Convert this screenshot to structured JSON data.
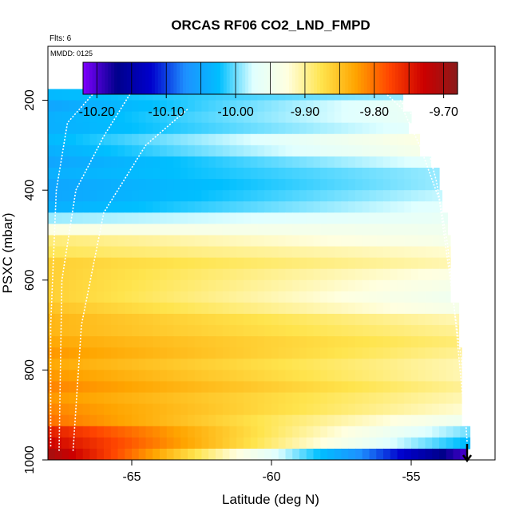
{
  "chart_data": {
    "type": "heatmap",
    "title": "ORCAS RF06 CO2_LND_FMPD",
    "note_flights": "Flts: 6",
    "note_date": "MMDD: 0125",
    "xlabel": "Latitude (deg N)",
    "ylabel": "PSXC (mbar)",
    "xlim": [
      -68,
      -52
    ],
    "ylim": [
      1000,
      80
    ],
    "x_ticks": [
      -65,
      -60,
      -55
    ],
    "x_tick_labels": [
      "-65",
      "-60",
      "-55"
    ],
    "y_ticks": [
      200,
      400,
      600,
      800,
      1000
    ],
    "y_tick_labels": [
      "200",
      "400",
      "600",
      "800",
      "1000"
    ],
    "colorbar": {
      "min": -10.22,
      "max": -9.68,
      "ticks": [
        -10.2,
        -10.1,
        -10.0,
        -9.9,
        -9.8,
        -9.7
      ],
      "tick_labels": [
        "-10.20",
        "-10.10",
        "-10.00",
        "-9.90",
        "-9.80",
        "-9.70"
      ],
      "color_stops": [
        "#7f00ff",
        "#00008b",
        "#0000cd",
        "#1e90ff",
        "#00bfff",
        "#e0ffff",
        "#ffffe0",
        "#ffe44d",
        "#ffa500",
        "#ff4500",
        "#cc0000",
        "#8b1a1a"
      ]
    },
    "x_bin_width": 0.25,
    "pressure_bin_height": 25,
    "layers": [
      {
        "p_top": 175,
        "p_bottom": 200,
        "lat_min": -68,
        "lat_max": -55.3,
        "v_left": -10.03,
        "v_right": -9.99
      },
      {
        "p_top": 200,
        "p_bottom": 225,
        "lat_min": -68,
        "lat_max": -55.3,
        "v_left": -10.05,
        "v_right": -9.96
      },
      {
        "p_top": 225,
        "p_bottom": 250,
        "lat_min": -68,
        "lat_max": -55.0,
        "v_left": -10.04,
        "v_right": -9.96
      },
      {
        "p_top": 250,
        "p_bottom": 275,
        "lat_min": -68,
        "lat_max": -55.1,
        "v_left": -10.04,
        "v_right": -9.97
      },
      {
        "p_top": 275,
        "p_bottom": 300,
        "lat_min": -68,
        "lat_max": -54.7,
        "v_left": -10.03,
        "v_right": -9.93
      },
      {
        "p_top": 300,
        "p_bottom": 325,
        "lat_min": -68,
        "lat_max": -54.7,
        "v_left": -10.04,
        "v_right": -9.94
      },
      {
        "p_top": 325,
        "p_bottom": 350,
        "lat_min": -68,
        "lat_max": -54.3,
        "v_left": -10.05,
        "v_right": -9.97
      },
      {
        "p_top": 350,
        "p_bottom": 375,
        "lat_min": -68,
        "lat_max": -54.0,
        "v_left": -10.04,
        "v_right": -9.99
      },
      {
        "p_top": 375,
        "p_bottom": 400,
        "lat_min": -68,
        "lat_max": -54.0,
        "v_left": -10.05,
        "v_right": -9.99
      },
      {
        "p_top": 400,
        "p_bottom": 425,
        "lat_min": -68,
        "lat_max": -53.9,
        "v_left": -10.05,
        "v_right": -9.98
      },
      {
        "p_top": 425,
        "p_bottom": 450,
        "lat_min": -68,
        "lat_max": -53.9,
        "v_left": -10.04,
        "v_right": -9.97
      },
      {
        "p_top": 450,
        "p_bottom": 475,
        "lat_min": -68,
        "lat_max": -53.7,
        "v_left": -9.99,
        "v_right": -9.96
      },
      {
        "p_top": 475,
        "p_bottom": 500,
        "lat_min": -68,
        "lat_max": -53.7,
        "v_left": -9.93,
        "v_right": -9.95
      },
      {
        "p_top": 500,
        "p_bottom": 525,
        "lat_min": -68,
        "lat_max": -53.6,
        "v_left": -9.89,
        "v_right": -9.94
      },
      {
        "p_top": 525,
        "p_bottom": 550,
        "lat_min": -68,
        "lat_max": -53.6,
        "v_left": -9.88,
        "v_right": -9.92
      },
      {
        "p_top": 550,
        "p_bottom": 575,
        "lat_min": -68,
        "lat_max": -53.6,
        "v_left": -9.86,
        "v_right": -9.91
      },
      {
        "p_top": 575,
        "p_bottom": 600,
        "lat_min": -68,
        "lat_max": -53.6,
        "v_left": -9.86,
        "v_right": -9.93
      },
      {
        "p_top": 600,
        "p_bottom": 625,
        "lat_min": -68,
        "lat_max": -53.6,
        "v_left": -9.86,
        "v_right": -9.94
      },
      {
        "p_top": 625,
        "p_bottom": 650,
        "lat_min": -68,
        "lat_max": -53.6,
        "v_left": -9.86,
        "v_right": -9.95
      },
      {
        "p_top": 650,
        "p_bottom": 675,
        "lat_min": -68,
        "lat_max": -53.3,
        "v_left": -9.85,
        "v_right": -9.94
      },
      {
        "p_top": 675,
        "p_bottom": 700,
        "lat_min": -68,
        "lat_max": -53.3,
        "v_left": -9.84,
        "v_right": -9.91
      },
      {
        "p_top": 700,
        "p_bottom": 725,
        "lat_min": -68,
        "lat_max": -53.3,
        "v_left": -9.84,
        "v_right": -9.9
      },
      {
        "p_top": 725,
        "p_bottom": 750,
        "lat_min": -68,
        "lat_max": -53.3,
        "v_left": -9.83,
        "v_right": -9.89
      },
      {
        "p_top": 750,
        "p_bottom": 775,
        "lat_min": -68,
        "lat_max": -53.2,
        "v_left": -9.82,
        "v_right": -9.9
      },
      {
        "p_top": 775,
        "p_bottom": 800,
        "lat_min": -68,
        "lat_max": -53.2,
        "v_left": -9.83,
        "v_right": -9.91
      },
      {
        "p_top": 800,
        "p_bottom": 825,
        "lat_min": -68,
        "lat_max": -53.2,
        "v_left": -9.82,
        "v_right": -9.91
      },
      {
        "p_top": 825,
        "p_bottom": 850,
        "lat_min": -68,
        "lat_max": -53.2,
        "v_left": -9.81,
        "v_right": -9.9
      },
      {
        "p_top": 850,
        "p_bottom": 875,
        "lat_min": -68,
        "lat_max": -53.2,
        "v_left": -9.82,
        "v_right": -9.91
      },
      {
        "p_top": 875,
        "p_bottom": 900,
        "lat_min": -68,
        "lat_max": -53.2,
        "v_left": -9.81,
        "v_right": -9.92
      },
      {
        "p_top": 900,
        "p_bottom": 925,
        "lat_min": -68,
        "lat_max": -53.2,
        "v_left": -9.8,
        "v_right": -9.95
      },
      {
        "p_top": 925,
        "p_bottom": 950,
        "lat_min": -68,
        "lat_max": -52.9,
        "v_left": -9.75,
        "v_right": -10.0
      },
      {
        "p_top": 950,
        "p_bottom": 975,
        "lat_min": -68,
        "lat_max": -52.9,
        "v_left": -9.73,
        "v_right": -10.03
      },
      {
        "p_top": 975,
        "p_bottom": 1000,
        "lat_min": -68,
        "lat_max": -53.0,
        "v_left": -9.7,
        "v_right": -10.2
      }
    ],
    "flight_track": {
      "description": "white dotted aircraft profile lines",
      "segments": [
        [
          [
            -67.6,
            980
          ],
          [
            -67.5,
            600
          ],
          [
            -67.0,
            400
          ],
          [
            -66.0,
            280
          ],
          [
            -65.0,
            180
          ],
          [
            -60,
            180
          ],
          [
            -56.0,
            180
          ],
          [
            -55.3,
            220
          ],
          [
            -54.7,
            300
          ],
          [
            -54.0,
            420
          ],
          [
            -53.6,
            600
          ],
          [
            -53.2,
            780
          ],
          [
            -53.0,
            960
          ]
        ],
        [
          [
            -67.9,
            970
          ],
          [
            -67.9,
            700
          ],
          [
            -67.7,
            400
          ],
          [
            -67.3,
            250
          ],
          [
            -66.3,
            180
          ]
        ],
        [
          [
            -67.1,
            980
          ],
          [
            -66.8,
            700
          ],
          [
            -66.0,
            450
          ],
          [
            -64.5,
            300
          ],
          [
            -63.0,
            220
          ]
        ],
        [
          [
            -55.4,
            200
          ],
          [
            -54.6,
            260
          ],
          [
            -54.1,
            380
          ],
          [
            -53.7,
            520
          ],
          [
            -53.4,
            700
          ],
          [
            -53.1,
            900
          ]
        ]
      ]
    }
  }
}
